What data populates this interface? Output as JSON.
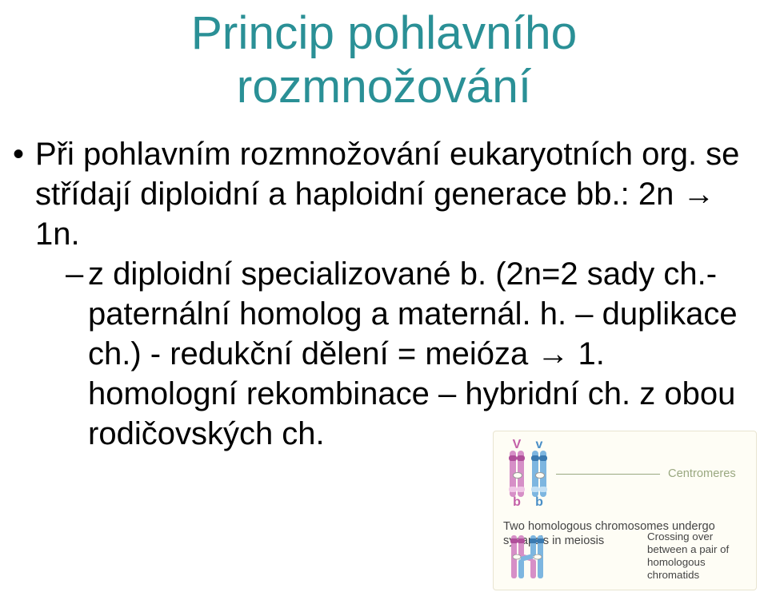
{
  "title": {
    "line1": "Princip pohlavního",
    "line2": "rozmnožování",
    "color": "#2a9096",
    "fontsize_pt": 44
  },
  "body": {
    "color": "#000000",
    "fontsize_pt": 30,
    "bullets": [
      {
        "text_parts": [
          "Při pohlavním rozmnožování eukaryotních org. se střídají diploidní a haploidní generace bb.: 2n ",
          "→",
          " 1n."
        ],
        "sub": [
          {
            "text_parts": [
              "z diploidní specializované b. (2n=2 sady ch.- paternální homolog a maternál. h. – duplikace ch.) - redukční dělení = meióza ",
              "→",
              " 1. homologní rekombinace – hybridní ch. z obou rodičovských ch."
            ]
          }
        ]
      }
    ]
  },
  "diagram": {
    "background_color": "#fefdf5",
    "border_color": "#e8e4d0",
    "centromere_label": "Centromeres",
    "centromere_label_color": "#9aa880",
    "centromere_label_fontsize_pt": 11,
    "caption_main": "Two homologous chromosomes undergo synapsis in meiosis",
    "caption_main_fontsize_pt": 11,
    "caption_side": "Crossing over between a pair of homologous chromatids",
    "caption_side_fontsize_pt": 10,
    "alleles": {
      "pink_top": "V",
      "pink_bot": "b",
      "blue_top": "v",
      "blue_bot": "b"
    },
    "colors": {
      "pink": "#d68fc7",
      "pink_dark": "#b04f9a",
      "pink_light": "#f0c5e6",
      "blue": "#7db6e0",
      "blue_dark": "#3a7ab0",
      "blue_light": "#c2e0f5",
      "allele_pink": "#c35fa8",
      "allele_blue": "#4a8fc7"
    }
  }
}
